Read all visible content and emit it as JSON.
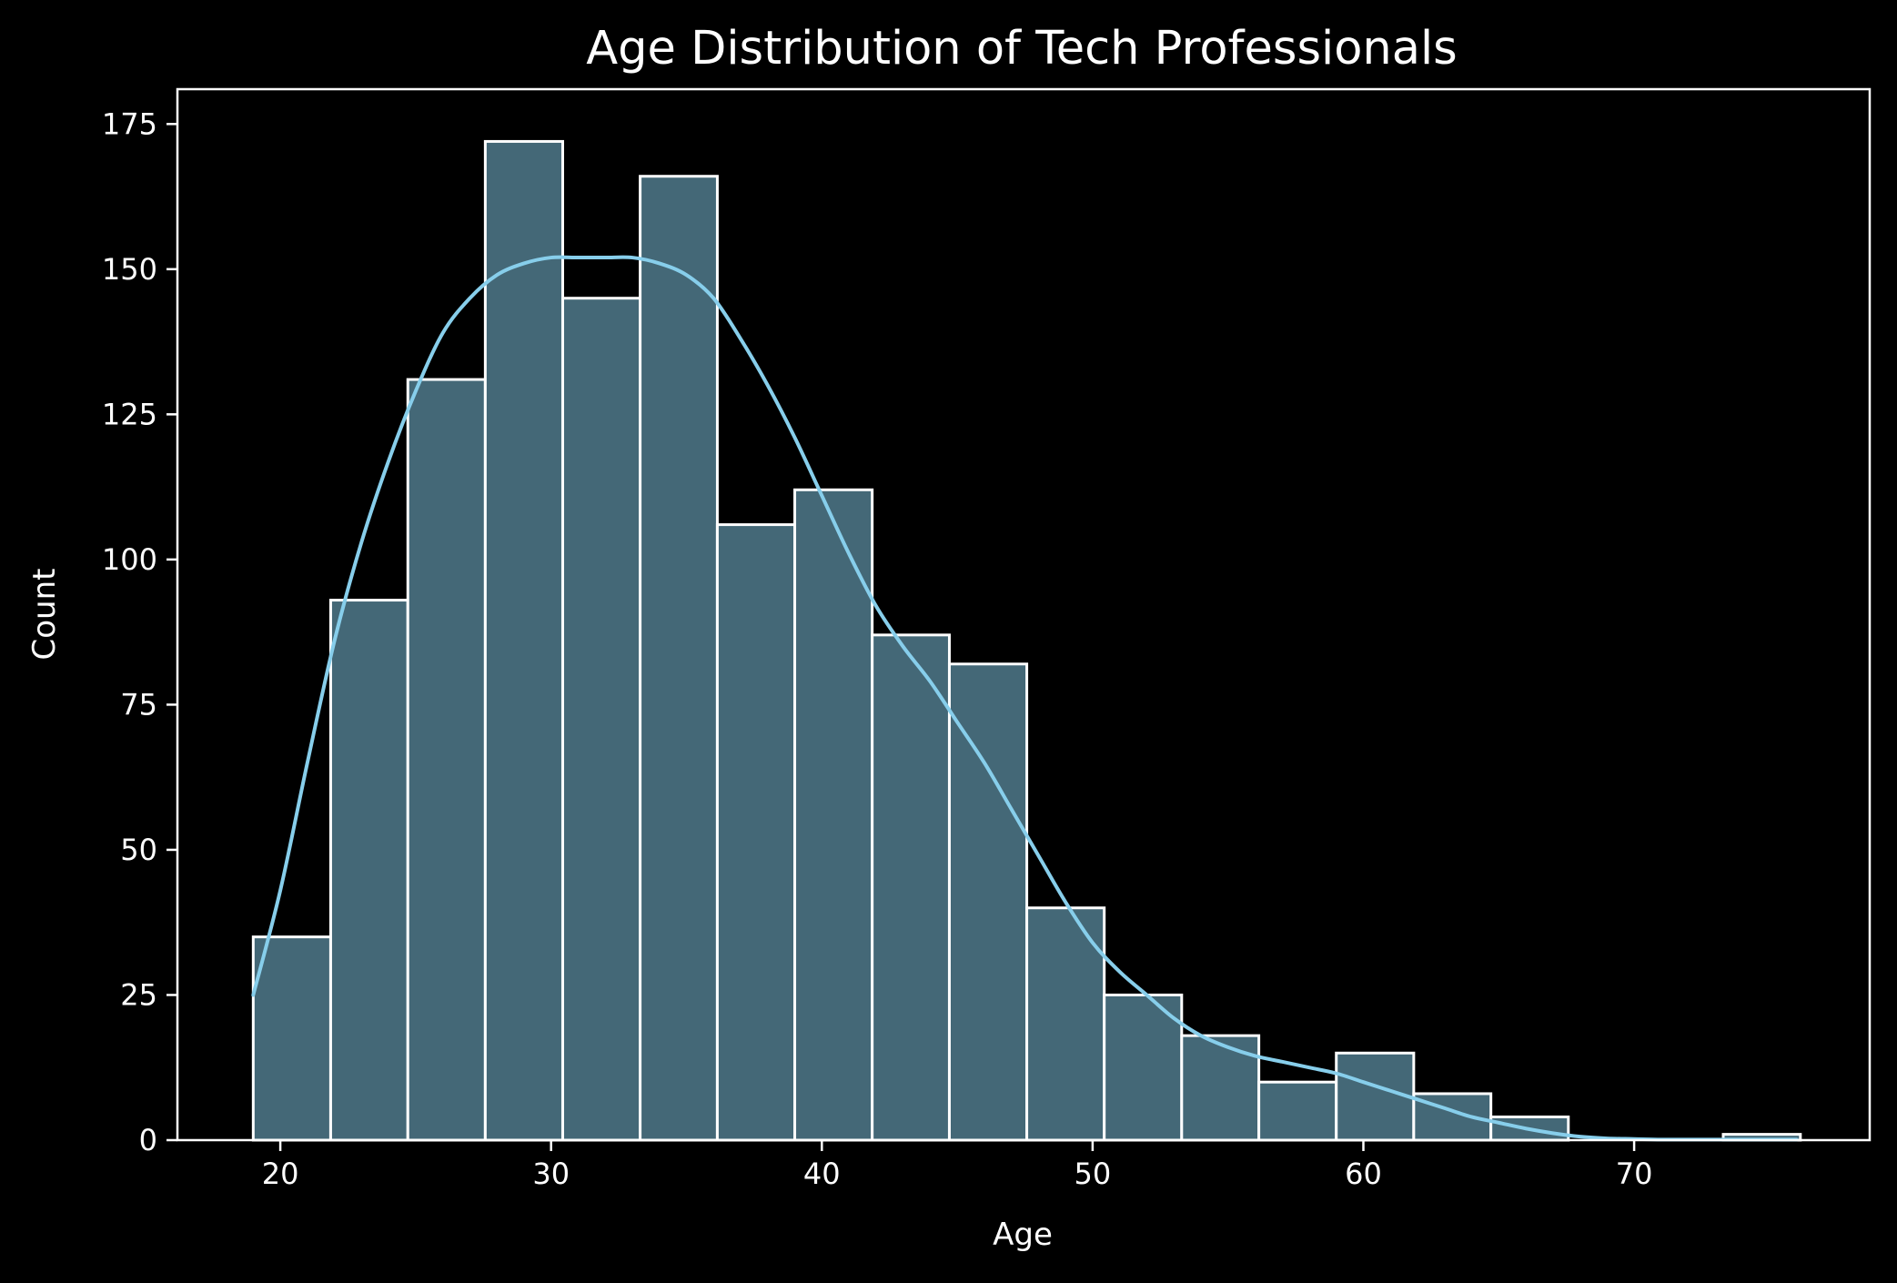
{
  "chart_data": {
    "type": "bar",
    "subtype": "histogram",
    "title": "Age Distribution of Tech Professionals",
    "xlabel": "Age",
    "ylabel": "Count",
    "xlim": [
      16.2,
      78.7
    ],
    "ylim": [
      0,
      181
    ],
    "xticks": [
      20,
      30,
      40,
      50,
      60,
      70
    ],
    "yticks": [
      0,
      25,
      50,
      75,
      100,
      125,
      150,
      175
    ],
    "grid": false,
    "bins": [
      {
        "x0": 19.0,
        "x1": 21.86,
        "count": 35
      },
      {
        "x0": 21.86,
        "x1": 24.71,
        "count": 93
      },
      {
        "x0": 24.71,
        "x1": 27.57,
        "count": 131
      },
      {
        "x0": 27.57,
        "x1": 30.43,
        "count": 172
      },
      {
        "x0": 30.43,
        "x1": 33.29,
        "count": 145
      },
      {
        "x0": 33.29,
        "x1": 36.14,
        "count": 166
      },
      {
        "x0": 36.14,
        "x1": 39.0,
        "count": 106
      },
      {
        "x0": 39.0,
        "x1": 41.86,
        "count": 112
      },
      {
        "x0": 41.86,
        "x1": 44.71,
        "count": 87
      },
      {
        "x0": 44.71,
        "x1": 47.57,
        "count": 82
      },
      {
        "x0": 47.57,
        "x1": 50.43,
        "count": 40
      },
      {
        "x0": 50.43,
        "x1": 53.29,
        "count": 25
      },
      {
        "x0": 53.29,
        "x1": 56.14,
        "count": 18
      },
      {
        "x0": 56.14,
        "x1": 59.0,
        "count": 10
      },
      {
        "x0": 59.0,
        "x1": 61.86,
        "count": 15
      },
      {
        "x0": 61.86,
        "x1": 64.71,
        "count": 8
      },
      {
        "x0": 64.71,
        "x1": 67.57,
        "count": 4
      },
      {
        "x0": 67.57,
        "x1": 70.43,
        "count": 0
      },
      {
        "x0": 70.43,
        "x1": 73.29,
        "count": 0
      },
      {
        "x0": 73.29,
        "x1": 76.14,
        "count": 1
      }
    ],
    "kde": {
      "x": [
        19,
        20,
        21,
        22,
        23,
        24,
        25,
        26,
        27,
        28,
        29,
        30,
        31,
        32,
        33,
        34,
        35,
        36,
        37,
        38,
        39,
        40,
        41,
        42,
        43,
        44,
        45,
        46,
        47,
        48,
        49,
        50,
        51,
        52,
        53,
        54,
        55,
        56,
        57,
        58,
        59,
        60,
        61,
        62,
        63,
        64,
        65,
        66,
        67,
        68,
        69,
        70,
        71,
        72,
        73,
        74,
        75,
        76
      ],
      "y": [
        25,
        43,
        65,
        86,
        103,
        117,
        129,
        139,
        145,
        149,
        151,
        152,
        152,
        152,
        152,
        151,
        149,
        145,
        138,
        130,
        121,
        111,
        101,
        92,
        85,
        79,
        72,
        65,
        57,
        49,
        41,
        34,
        29,
        25,
        21,
        18,
        16,
        14.5,
        13.5,
        12.5,
        11.5,
        10,
        8.5,
        7,
        5.5,
        4,
        3,
        2,
        1.2,
        0.6,
        0.3,
        0.2,
        0.1,
        0.1,
        0.1,
        0.1,
        0.1,
        0.1
      ]
    },
    "colors": {
      "background": "#000000",
      "bar_fill": "#446877",
      "bar_edge": "#ffffff",
      "kde_line": "#87ceeb",
      "text": "#ffffff"
    }
  }
}
